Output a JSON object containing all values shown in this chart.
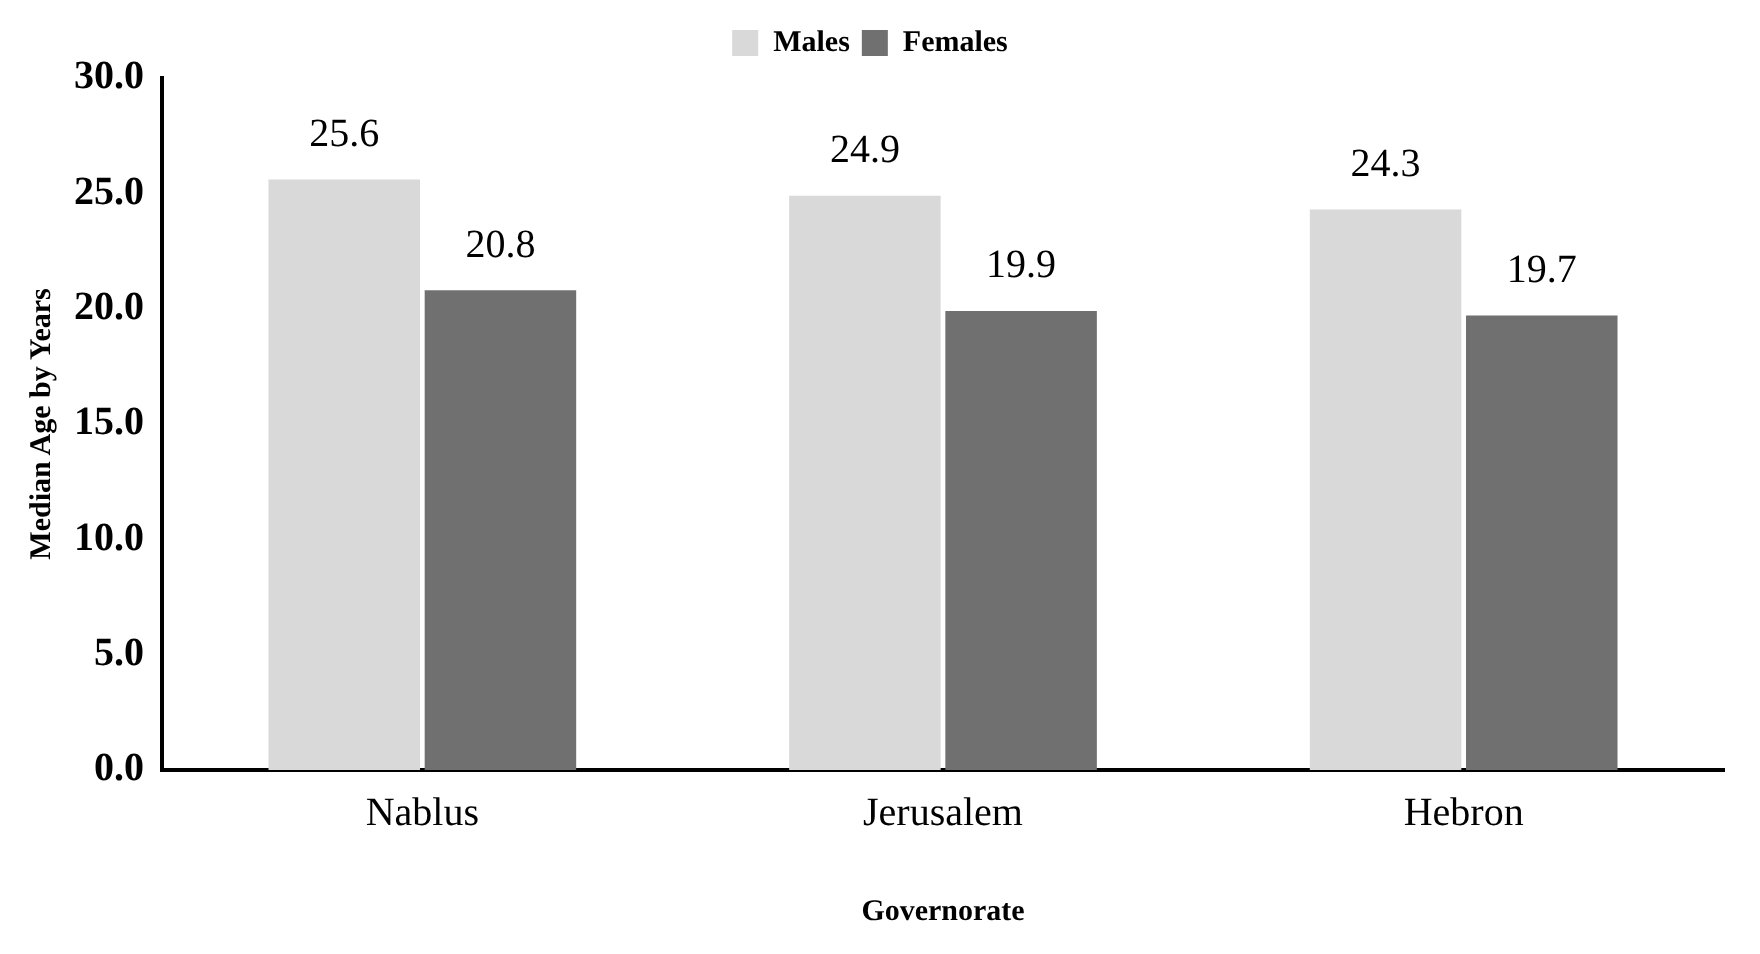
{
  "chart_data": {
    "type": "bar",
    "xlabel": "Governorate",
    "ylabel": "Median Age by Years",
    "categories": [
      "Nablus",
      "Jerusalem",
      "Hebron"
    ],
    "series": [
      {
        "name": "Males",
        "color": "#d9d9d9",
        "values": [
          25.6,
          24.9,
          24.3
        ]
      },
      {
        "name": "Females",
        "color": "#707070",
        "values": [
          20.8,
          19.9,
          19.7
        ]
      }
    ],
    "ylim": [
      0,
      30
    ],
    "yticks": [
      {
        "value": 0,
        "label": "0.0"
      },
      {
        "value": 5,
        "label": "5.0"
      },
      {
        "value": 10,
        "label": "10.0"
      },
      {
        "value": 15,
        "label": "15.0"
      },
      {
        "value": 20,
        "label": "20.0"
      },
      {
        "value": 25,
        "label": "25.0"
      },
      {
        "value": 30,
        "label": "30.0"
      }
    ],
    "grid": false,
    "legend": "top",
    "data_labels": true
  }
}
